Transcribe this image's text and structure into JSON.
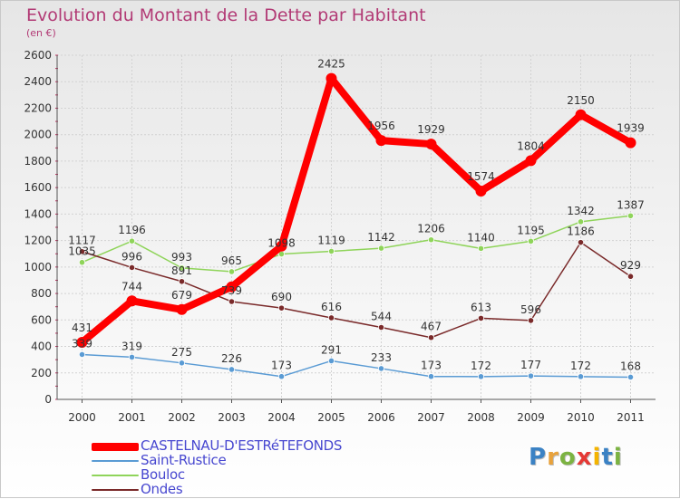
{
  "title": "Evolution du Montant de la Dette par Habitant",
  "subtitle": "(en €)",
  "logo": {
    "text": "Proxiti",
    "colors": [
      "#3b82c4",
      "#e8a23c",
      "#7cb342",
      "#e53935",
      "#f4b400",
      "#3b82c4",
      "#7cb342"
    ]
  },
  "chart_data": {
    "type": "line",
    "x": [
      "2000",
      "2001",
      "2002",
      "2003",
      "2004",
      "2005",
      "2006",
      "2007",
      "2008",
      "2009",
      "2010",
      "2011"
    ],
    "ylim": [
      0,
      2600
    ],
    "yticks": [
      "0",
      "200",
      "400",
      "600",
      "800",
      "1000",
      "1200",
      "1400",
      "1600",
      "1800",
      "2000",
      "2200",
      "2400",
      "2600"
    ],
    "grid": true,
    "legend": "bottom-left",
    "series": [
      {
        "name": "CASTELNAU-D'ESTRéTEFONDS",
        "color": "#ff0000",
        "width": 8,
        "point": 6,
        "values": [
          431,
          744,
          679,
          850,
          1158,
          2425,
          1956,
          1929,
          1574,
          1804,
          2150,
          1939
        ],
        "labels": [
          "431",
          "744",
          "679",
          "",
          "",
          "2425",
          "1956",
          "1929",
          "1574",
          "1804",
          "2150",
          "1939"
        ]
      },
      {
        "name": "Saint-Rustice",
        "color": "#5a9bd4",
        "width": 1.5,
        "point": 3.2,
        "values": [
          339,
          319,
          275,
          226,
          173,
          291,
          233,
          173,
          172,
          177,
          172,
          168
        ],
        "labels": [
          "339",
          "319",
          "275",
          "226",
          "173",
          "291",
          "233",
          "173",
          "172",
          "177",
          "172",
          "168"
        ]
      },
      {
        "name": "Bouloc",
        "color": "#8fd45a",
        "width": 1.5,
        "point": 3.2,
        "values": [
          1035,
          1196,
          993,
          965,
          1098,
          1119,
          1142,
          1206,
          1140,
          1195,
          1342,
          1387
        ],
        "labels": [
          "1035",
          "1196",
          "993",
          "965",
          "1098",
          "1119",
          "1142",
          "1206",
          "1140",
          "1195",
          "1342",
          "1387"
        ]
      },
      {
        "name": "Ondes",
        "color": "#7a2a2a",
        "width": 1.5,
        "point": 3.2,
        "values": [
          1117,
          996,
          891,
          739,
          690,
          616,
          544,
          467,
          613,
          596,
          1186,
          929
        ],
        "labels": [
          "1117",
          "996",
          "891",
          "739",
          "690",
          "616",
          "544",
          "467",
          "613",
          "596",
          "1186",
          "929"
        ]
      }
    ]
  }
}
